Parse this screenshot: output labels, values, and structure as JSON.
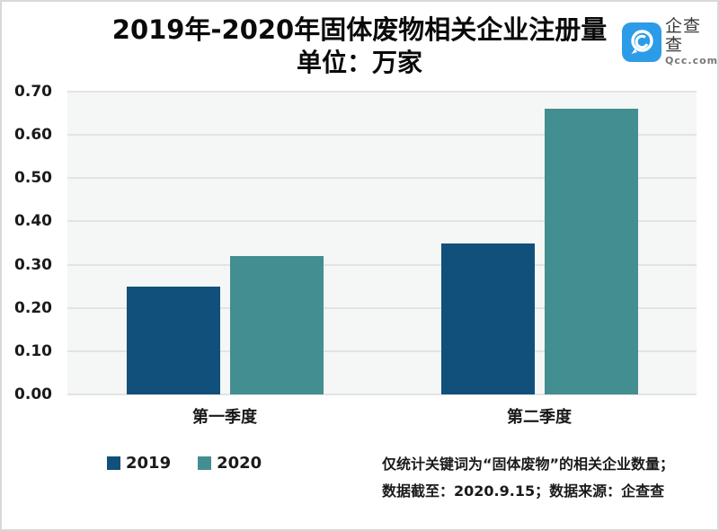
{
  "page": {
    "title": "2019年-2020年固体废物相关企业注册量",
    "subtitle": "单位：万家"
  },
  "logo": {
    "name": "企查查",
    "domain": "Qcc.com",
    "brand_color": "#2d9ce8"
  },
  "chart_data": {
    "type": "bar",
    "title": "2019年-2020年固体废物相关企业注册量",
    "subtitle": "单位：万家",
    "unit": "万家",
    "categories": [
      "第一季度",
      "第二季度"
    ],
    "series": [
      {
        "name": "2019",
        "color": "#10507a",
        "values": [
          0.25,
          0.35
        ]
      },
      {
        "name": "2020",
        "color": "#438e90",
        "values": [
          0.32,
          0.66
        ]
      }
    ],
    "ylim": [
      0,
      0.7
    ],
    "yticks": [
      0.0,
      0.1,
      0.2,
      0.3,
      0.4,
      0.5,
      0.6,
      0.7
    ],
    "grid": true,
    "plot_background": "#f5f6f6",
    "gridline_color": "#e3e3e3",
    "legend_position": "bottom-left"
  },
  "footnote": {
    "line1": "仅统计关键词为“固体废物”的相关企业数量；",
    "line2": "数据截至：2020.9.15；数据来源：企查查"
  }
}
